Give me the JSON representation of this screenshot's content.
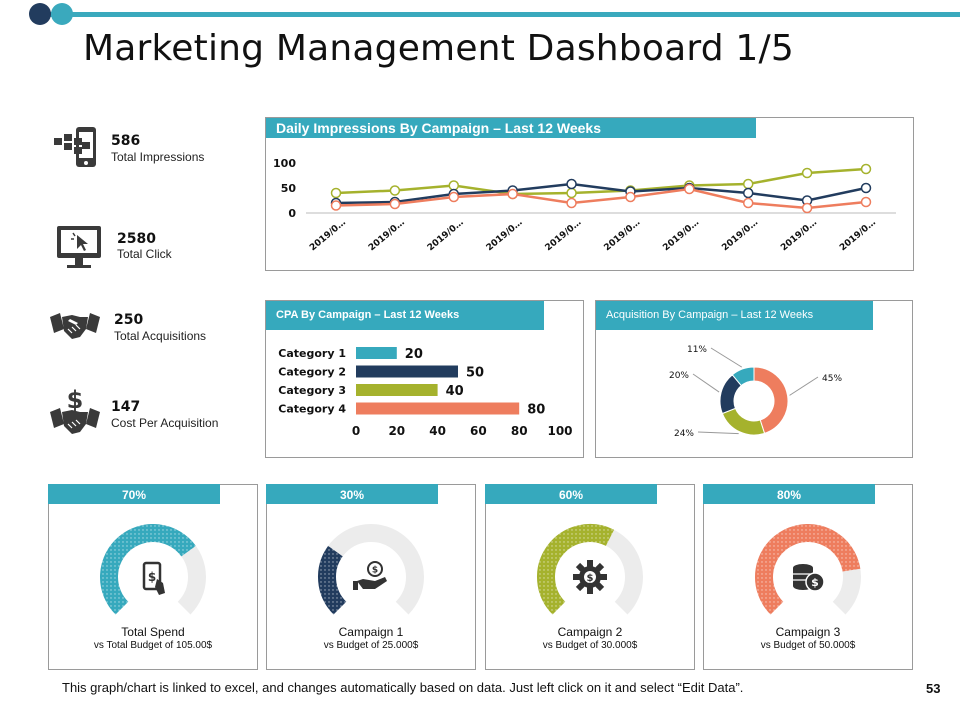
{
  "title": "Marketing Management Dashboard 1/5",
  "colors": {
    "teal": "#36a9bd",
    "navy": "#223c5e",
    "olive": "#a5b22d",
    "orange": "#ee7d5e",
    "grey": "#9a9a9a"
  },
  "kpis": [
    {
      "value": "586",
      "label": "Total Impressions",
      "icon": "mobile-tap-icon"
    },
    {
      "value": "2580",
      "label": "Total Click",
      "icon": "monitor-cursor-icon"
    },
    {
      "value": "250",
      "label": "Total Acquisitions",
      "icon": "handshake-icon"
    },
    {
      "value": "147",
      "label": "Cost Per Acquisition",
      "icon": "dollar-handshake-icon"
    }
  ],
  "panels": {
    "impressions": {
      "title": "Daily Impressions By Campaign – Last 12 Weeks"
    },
    "cpa": {
      "title": "CPA By Campaign – Last 12 Weeks"
    },
    "acquisition": {
      "title": "Acquisition By Campaign – Last 12 Weeks"
    }
  },
  "chart_data": [
    {
      "type": "line",
      "title": "Daily Impressions By Campaign – Last 12 Weeks",
      "x": [
        "2019/0…",
        "2019/0…",
        "2019/0…",
        "2019/0…",
        "2019/0…",
        "2019/0…",
        "2019/0…",
        "2019/0…",
        "2019/0…",
        "2019/0…"
      ],
      "yticks": [
        "0",
        "50",
        "100"
      ],
      "ylim": [
        0,
        100
      ],
      "grid": false,
      "series": [
        {
          "values": [
            40,
            45,
            55,
            38,
            40,
            45,
            55,
            58,
            80,
            88
          ],
          "color": "#a5b22d"
        },
        {
          "values": [
            20,
            22,
            38,
            45,
            58,
            43,
            50,
            40,
            25,
            50
          ],
          "color": "#223c5e"
        },
        {
          "values": [
            15,
            18,
            32,
            38,
            20,
            32,
            48,
            20,
            10,
            22
          ],
          "color": "#ee7d5e"
        }
      ]
    },
    {
      "type": "bar",
      "title": "CPA By Campaign – Last 12 Weeks",
      "orientation": "horizontal",
      "categories": [
        "Category 1",
        "Category 2",
        "Category 3",
        "Category 4"
      ],
      "values": [
        20,
        50,
        40,
        80
      ],
      "colors": [
        "#36a9bd",
        "#223c5e",
        "#a5b22d",
        "#ee7d5e"
      ],
      "xticks": [
        "0",
        "20",
        "40",
        "60",
        "80",
        "100"
      ],
      "xlim": [
        0,
        100
      ]
    },
    {
      "type": "pie",
      "style": "donut",
      "title": "Acquisition By Campaign – Last 12 Weeks",
      "slices": [
        {
          "label": "45%",
          "value": 45,
          "color": "#ee7d5e"
        },
        {
          "label": "24%",
          "value": 24,
          "color": "#a5b22d"
        },
        {
          "label": "20%",
          "value": 20,
          "color": "#223c5e"
        },
        {
          "label": "11%",
          "value": 11,
          "color": "#36a9bd"
        }
      ]
    }
  ],
  "gauges": [
    {
      "percent_label": "70%",
      "fraction": 0.7,
      "color": "#36a9bd",
      "icon": "phone-dollar-icon",
      "title": "Total Spend",
      "subtitle": "vs Total Budget of 105.00$"
    },
    {
      "percent_label": "30%",
      "fraction": 0.3,
      "color": "#223c5e",
      "icon": "hand-coin-icon",
      "title": "Campaign 1",
      "subtitle": "vs Budget of 25.000$"
    },
    {
      "percent_label": "60%",
      "fraction": 0.6,
      "color": "#a5b22d",
      "icon": "gear-dollar-icon",
      "title": "Campaign 2",
      "subtitle": "vs Budget of 30.000$"
    },
    {
      "percent_label": "80%",
      "fraction": 0.8,
      "color": "#ee7d5e",
      "icon": "coins-dollar-icon",
      "title": "Campaign 3",
      "subtitle": "vs Budget of 50.000$"
    }
  ],
  "footer": "This graph/chart is linked to excel, and changes automatically  based on data. Just left click on it and select “Edit Data”.",
  "page_number": "53"
}
